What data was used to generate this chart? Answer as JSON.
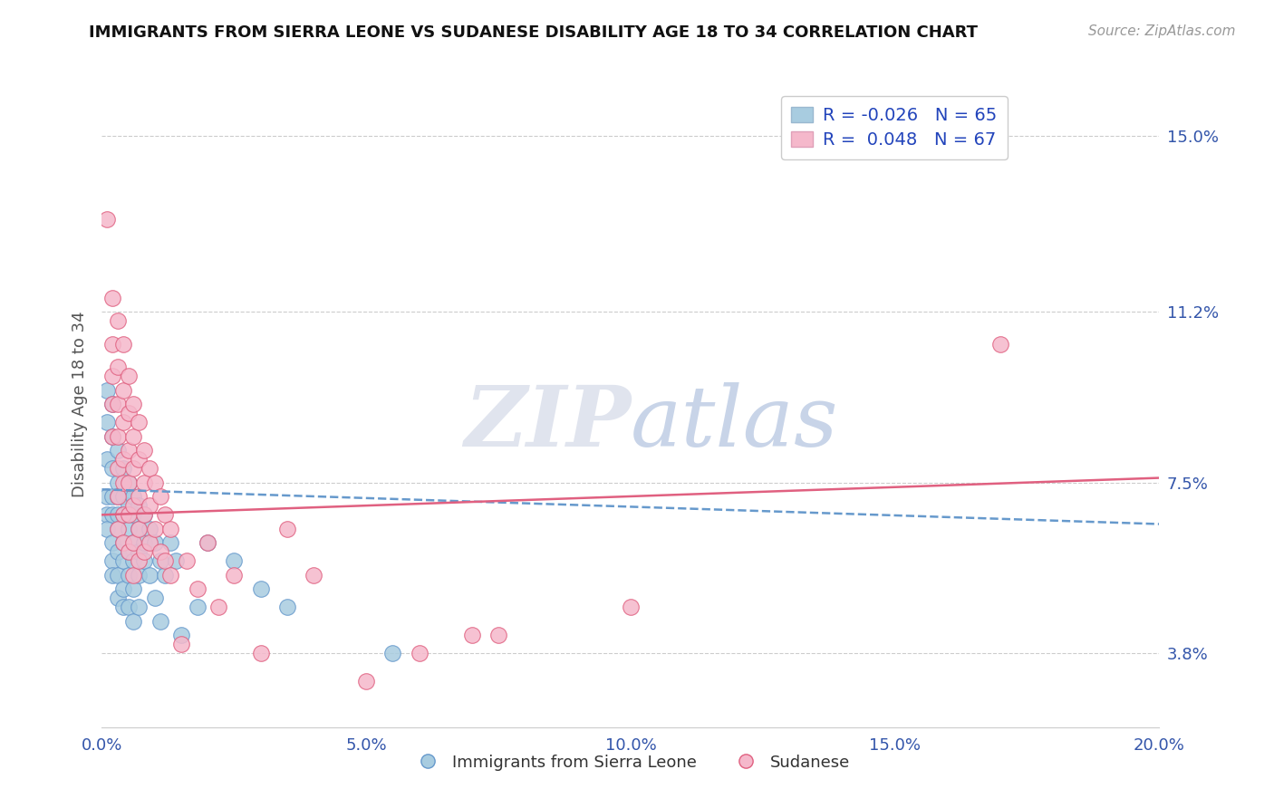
{
  "title": "IMMIGRANTS FROM SIERRA LEONE VS SUDANESE DISABILITY AGE 18 TO 34 CORRELATION CHART",
  "source": "Source: ZipAtlas.com",
  "ylabel": "Disability Age 18 to 34",
  "xlim": [
    0.0,
    0.2
  ],
  "ylim": [
    0.022,
    0.162
  ],
  "xticks": [
    0.0,
    0.05,
    0.1,
    0.15,
    0.2
  ],
  "xtick_labels": [
    "0.0%",
    "5.0%",
    "10.0%",
    "15.0%",
    "20.0%"
  ],
  "yticks": [
    0.038,
    0.075,
    0.112,
    0.15
  ],
  "ytick_labels": [
    "3.8%",
    "7.5%",
    "11.2%",
    "15.0%"
  ],
  "r_blue_text": "-0.026",
  "n_blue": "65",
  "r_pink_text": "0.048",
  "n_pink": "67",
  "blue_color": "#a8cce0",
  "pink_color": "#f5b8cb",
  "blue_line_color": "#6699cc",
  "pink_line_color": "#e06080",
  "legend_blue_label": "Immigrants from Sierra Leone",
  "legend_pink_label": "Sudanese",
  "blue_scatter": [
    [
      0.001,
      0.095
    ],
    [
      0.001,
      0.088
    ],
    [
      0.001,
      0.08
    ],
    [
      0.001,
      0.072
    ],
    [
      0.001,
      0.068
    ],
    [
      0.001,
      0.065
    ],
    [
      0.002,
      0.092
    ],
    [
      0.002,
      0.085
    ],
    [
      0.002,
      0.078
    ],
    [
      0.002,
      0.072
    ],
    [
      0.002,
      0.068
    ],
    [
      0.002,
      0.062
    ],
    [
      0.002,
      0.058
    ],
    [
      0.002,
      0.055
    ],
    [
      0.003,
      0.082
    ],
    [
      0.003,
      0.075
    ],
    [
      0.003,
      0.072
    ],
    [
      0.003,
      0.068
    ],
    [
      0.003,
      0.065
    ],
    [
      0.003,
      0.06
    ],
    [
      0.003,
      0.055
    ],
    [
      0.003,
      0.05
    ],
    [
      0.004,
      0.078
    ],
    [
      0.004,
      0.072
    ],
    [
      0.004,
      0.068
    ],
    [
      0.004,
      0.062
    ],
    [
      0.004,
      0.058
    ],
    [
      0.004,
      0.052
    ],
    [
      0.004,
      0.048
    ],
    [
      0.005,
      0.075
    ],
    [
      0.005,
      0.07
    ],
    [
      0.005,
      0.065
    ],
    [
      0.005,
      0.06
    ],
    [
      0.005,
      0.055
    ],
    [
      0.005,
      0.048
    ],
    [
      0.006,
      0.072
    ],
    [
      0.006,
      0.068
    ],
    [
      0.006,
      0.062
    ],
    [
      0.006,
      0.058
    ],
    [
      0.006,
      0.052
    ],
    [
      0.006,
      0.045
    ],
    [
      0.007,
      0.07
    ],
    [
      0.007,
      0.065
    ],
    [
      0.007,
      0.06
    ],
    [
      0.007,
      0.055
    ],
    [
      0.007,
      0.048
    ],
    [
      0.008,
      0.068
    ],
    [
      0.008,
      0.062
    ],
    [
      0.008,
      0.058
    ],
    [
      0.009,
      0.065
    ],
    [
      0.009,
      0.055
    ],
    [
      0.01,
      0.062
    ],
    [
      0.01,
      0.05
    ],
    [
      0.011,
      0.058
    ],
    [
      0.011,
      0.045
    ],
    [
      0.012,
      0.055
    ],
    [
      0.013,
      0.062
    ],
    [
      0.014,
      0.058
    ],
    [
      0.015,
      0.042
    ],
    [
      0.018,
      0.048
    ],
    [
      0.02,
      0.062
    ],
    [
      0.025,
      0.058
    ],
    [
      0.03,
      0.052
    ],
    [
      0.035,
      0.048
    ],
    [
      0.055,
      0.038
    ]
  ],
  "pink_scatter": [
    [
      0.001,
      0.132
    ],
    [
      0.002,
      0.115
    ],
    [
      0.002,
      0.105
    ],
    [
      0.002,
      0.098
    ],
    [
      0.002,
      0.092
    ],
    [
      0.002,
      0.085
    ],
    [
      0.003,
      0.11
    ],
    [
      0.003,
      0.1
    ],
    [
      0.003,
      0.092
    ],
    [
      0.003,
      0.085
    ],
    [
      0.003,
      0.078
    ],
    [
      0.003,
      0.072
    ],
    [
      0.003,
      0.065
    ],
    [
      0.004,
      0.105
    ],
    [
      0.004,
      0.095
    ],
    [
      0.004,
      0.088
    ],
    [
      0.004,
      0.08
    ],
    [
      0.004,
      0.075
    ],
    [
      0.004,
      0.068
    ],
    [
      0.004,
      0.062
    ],
    [
      0.005,
      0.098
    ],
    [
      0.005,
      0.09
    ],
    [
      0.005,
      0.082
    ],
    [
      0.005,
      0.075
    ],
    [
      0.005,
      0.068
    ],
    [
      0.005,
      0.06
    ],
    [
      0.006,
      0.092
    ],
    [
      0.006,
      0.085
    ],
    [
      0.006,
      0.078
    ],
    [
      0.006,
      0.07
    ],
    [
      0.006,
      0.062
    ],
    [
      0.006,
      0.055
    ],
    [
      0.007,
      0.088
    ],
    [
      0.007,
      0.08
    ],
    [
      0.007,
      0.072
    ],
    [
      0.007,
      0.065
    ],
    [
      0.007,
      0.058
    ],
    [
      0.008,
      0.082
    ],
    [
      0.008,
      0.075
    ],
    [
      0.008,
      0.068
    ],
    [
      0.008,
      0.06
    ],
    [
      0.009,
      0.078
    ],
    [
      0.009,
      0.07
    ],
    [
      0.009,
      0.062
    ],
    [
      0.01,
      0.075
    ],
    [
      0.01,
      0.065
    ],
    [
      0.011,
      0.072
    ],
    [
      0.011,
      0.06
    ],
    [
      0.012,
      0.068
    ],
    [
      0.012,
      0.058
    ],
    [
      0.013,
      0.065
    ],
    [
      0.013,
      0.055
    ],
    [
      0.015,
      0.04
    ],
    [
      0.016,
      0.058
    ],
    [
      0.018,
      0.052
    ],
    [
      0.02,
      0.062
    ],
    [
      0.022,
      0.048
    ],
    [
      0.025,
      0.055
    ],
    [
      0.03,
      0.038
    ],
    [
      0.035,
      0.065
    ],
    [
      0.04,
      0.055
    ],
    [
      0.05,
      0.032
    ],
    [
      0.06,
      0.038
    ],
    [
      0.07,
      0.042
    ],
    [
      0.075,
      0.042
    ],
    [
      0.1,
      0.048
    ],
    [
      0.17,
      0.105
    ]
  ],
  "blue_trendline_x": [
    0.0,
    0.2
  ],
  "blue_trendline_y": [
    0.0735,
    0.066
  ],
  "pink_trendline_x": [
    0.0,
    0.2
  ],
  "pink_trendline_y": [
    0.068,
    0.076
  ]
}
